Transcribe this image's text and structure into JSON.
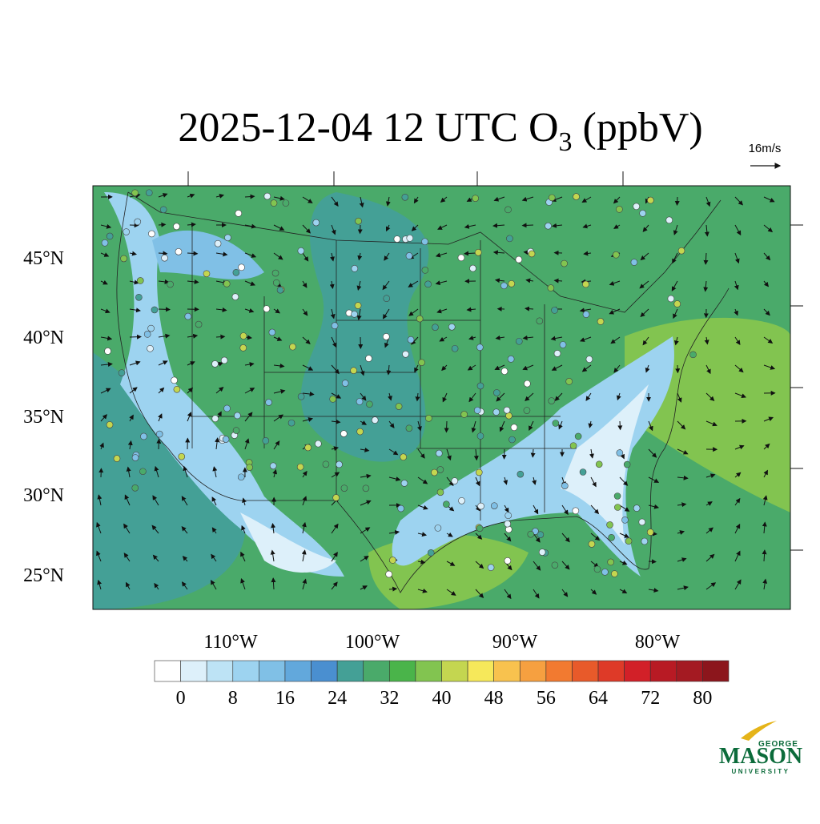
{
  "title": {
    "text": "2025-12-04 12 UTC O",
    "subscript": "3",
    "suffix": "(ppbV)"
  },
  "reference_vector": "16m/s",
  "map": {
    "lat_labels": [
      "45°N",
      "40°N",
      "35°N",
      "30°N",
      "25°N"
    ],
    "lon_labels": [
      "110°W",
      "100°W",
      "90°W",
      "80°W"
    ]
  },
  "colorbar": {
    "ticks": [
      0,
      8,
      16,
      24,
      32,
      40,
      48,
      56,
      64,
      72,
      80
    ],
    "colors": [
      "#ffffff",
      "#ddf0fa",
      "#bde3f5",
      "#9dd3f0",
      "#80c0e6",
      "#62a8dc",
      "#4a8fd0",
      "#44a096",
      "#4aaa6a",
      "#4ab44a",
      "#82c450",
      "#c4d650",
      "#f6e85a",
      "#f8c24e",
      "#f6a040",
      "#f27a30",
      "#e85a2a",
      "#de3a28",
      "#d22028",
      "#b81a24",
      "#a41a22",
      "#8c161c"
    ]
  },
  "logo": {
    "top": "GEORGE",
    "name": "MASON",
    "bottom": "UNIVERSITY"
  }
}
